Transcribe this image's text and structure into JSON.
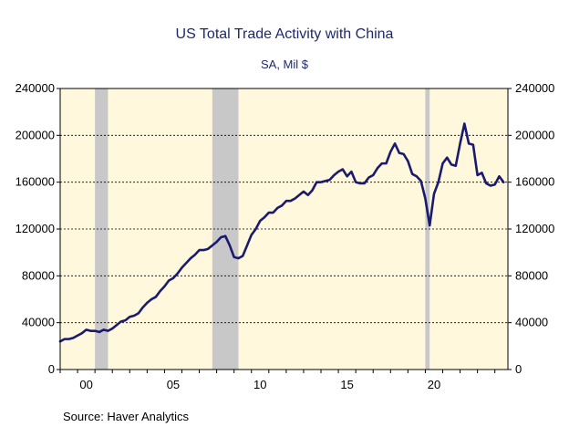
{
  "chart_data": {
    "type": "line",
    "title": "US Total Trade Activity with China",
    "subtitle": "SA, Mil $",
    "source": "Source:  Haver Analytics",
    "ylim": [
      0,
      240000
    ],
    "xlim": [
      1999.0,
      2024.75
    ],
    "y_ticks": [
      0,
      40000,
      80000,
      120000,
      160000,
      200000,
      240000
    ],
    "x_ticks": [
      {
        "year": 2000,
        "label": "00"
      },
      {
        "year": 2005,
        "label": "05"
      },
      {
        "year": 2010,
        "label": "10"
      },
      {
        "year": 2015,
        "label": "15"
      },
      {
        "year": 2020,
        "label": "20"
      }
    ],
    "recessions": [
      [
        2001.0,
        2001.75
      ],
      [
        2007.75,
        2009.25
      ],
      [
        2020.0,
        2020.25
      ]
    ],
    "grid": "horizontal dashed",
    "line_color": "#1a1a6e",
    "plot_bg": "#fff8dc",
    "recession_color": "#c8c8c8",
    "series": [
      {
        "x": [
          1999.0,
          1999.25,
          1999.5,
          1999.75,
          2000.0,
          2000.25,
          2000.5,
          2000.75,
          2001.0,
          2001.25,
          2001.5,
          2001.75,
          2002.0,
          2002.25,
          2002.5,
          2002.75,
          2003.0,
          2003.25,
          2003.5,
          2003.75,
          2004.0,
          2004.25,
          2004.5,
          2004.75,
          2005.0,
          2005.25,
          2005.5,
          2005.75,
          2006.0,
          2006.25,
          2006.5,
          2006.75,
          2007.0,
          2007.25,
          2007.5,
          2007.75,
          2008.0,
          2008.25,
          2008.5,
          2008.75,
          2009.0,
          2009.25,
          2009.5,
          2009.75,
          2010.0,
          2010.25,
          2010.5,
          2010.75,
          2011.0,
          2011.25,
          2011.5,
          2011.75,
          2012.0,
          2012.25,
          2012.5,
          2012.75,
          2013.0,
          2013.25,
          2013.5,
          2013.75,
          2014.0,
          2014.25,
          2014.5,
          2014.75,
          2015.0,
          2015.25,
          2015.5,
          2015.75,
          2016.0,
          2016.25,
          2016.5,
          2016.75,
          2017.0,
          2017.25,
          2017.5,
          2017.75,
          2018.0,
          2018.25,
          2018.5,
          2018.75,
          2019.0,
          2019.25,
          2019.5,
          2019.75,
          2020.0,
          2020.25,
          2020.5,
          2020.75,
          2021.0,
          2021.25,
          2021.5,
          2021.75,
          2022.0,
          2022.25,
          2022.5,
          2022.75,
          2023.0,
          2023.25,
          2023.5,
          2023.75,
          2024.0,
          2024.25,
          2024.5
        ],
        "values": [
          24000,
          26000,
          26000,
          27000,
          29000,
          31000,
          34000,
          33000,
          33000,
          32000,
          34000,
          33000,
          35000,
          38000,
          41000,
          42000,
          45000,
          46000,
          48000,
          53000,
          57000,
          60000,
          62000,
          67000,
          71000,
          76000,
          78000,
          82000,
          87000,
          91000,
          95000,
          98000,
          102000,
          102000,
          103000,
          106000,
          109000,
          113000,
          114000,
          106000,
          96000,
          95000,
          97000,
          106000,
          115000,
          120000,
          127000,
          130000,
          134000,
          134000,
          138000,
          140000,
          144000,
          144000,
          146000,
          149000,
          152000,
          149000,
          153000,
          160000,
          160000,
          161000,
          162000,
          166000,
          169000,
          171000,
          165000,
          169000,
          160000,
          159000,
          159000,
          164000,
          166000,
          172000,
          176000,
          176000,
          186000,
          193000,
          185000,
          184000,
          178000,
          167000,
          165000,
          161000,
          146000,
          123000,
          150000,
          160000,
          176000,
          181000,
          175000,
          174000,
          193000,
          210000,
          193000,
          192000,
          166000,
          168000,
          159000,
          157000,
          158000,
          165000,
          160000
        ]
      }
    ]
  }
}
